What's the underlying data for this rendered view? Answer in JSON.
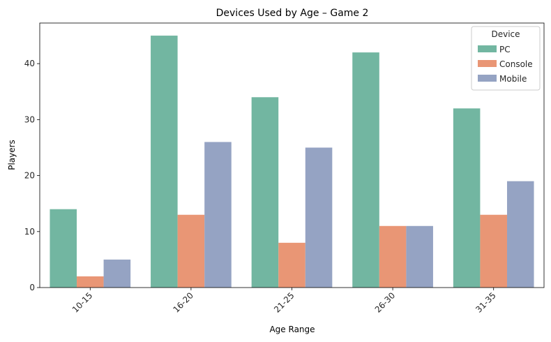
{
  "chart_data": {
    "type": "bar",
    "title": "Devices Used by Age – Game 2",
    "xlabel": "Age Range",
    "ylabel": "Players",
    "categories": [
      "10-15",
      "16-20",
      "21-25",
      "26-30",
      "31-35"
    ],
    "series": [
      {
        "name": "PC",
        "values": [
          14,
          45,
          34,
          42,
          32
        ],
        "color": "#72b6a1"
      },
      {
        "name": "Console",
        "values": [
          2,
          13,
          8,
          11,
          13
        ],
        "color": "#e99675"
      },
      {
        "name": "Mobile",
        "values": [
          5,
          26,
          25,
          11,
          19
        ],
        "color": "#95a3c3"
      }
    ],
    "ylim": [
      0,
      47.25
    ],
    "yticks": [
      0,
      10,
      20,
      30,
      40
    ],
    "legend": {
      "title": "Device",
      "placement": "top-right"
    },
    "grid": false,
    "xtick_rotation": 45
  }
}
